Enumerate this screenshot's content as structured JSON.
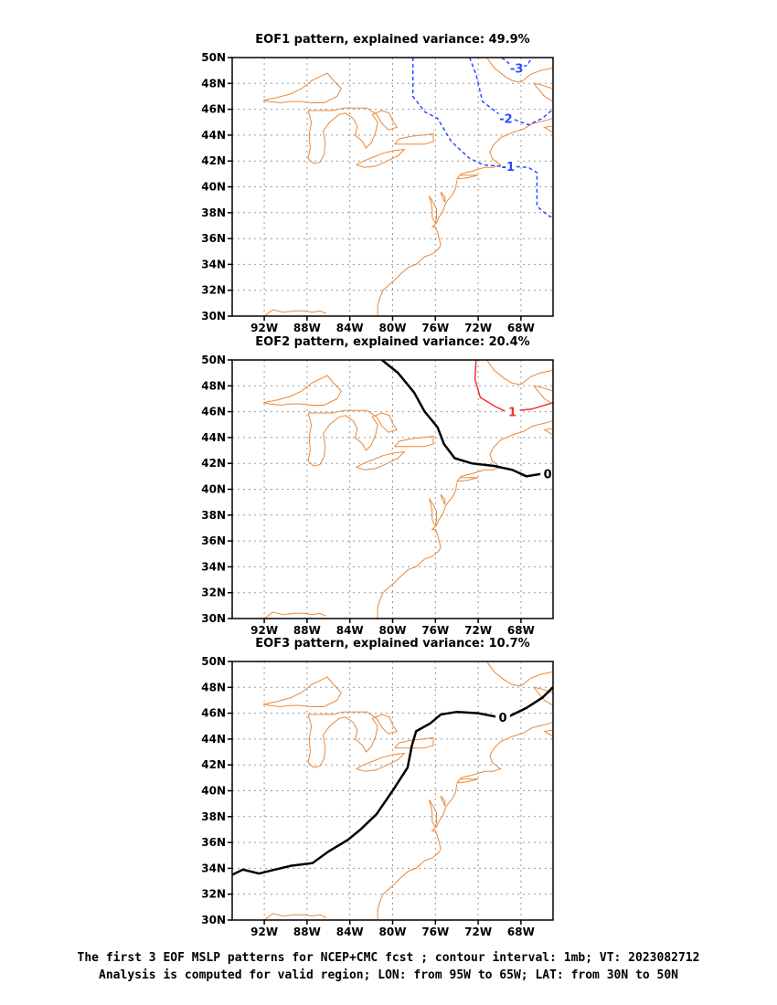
{
  "panels": [
    {
      "id": "eof1",
      "title": "EOF1 pattern, explained variance: 49.9%",
      "contours": [
        {
          "value": -1,
          "label": "-1",
          "style": "dashed",
          "color": "#2a4bff",
          "points": [
            [
              -78.1,
              50
            ],
            [
              -78.1,
              47
            ],
            [
              -77,
              45.8
            ],
            [
              -75.8,
              45.3
            ],
            [
              -74.5,
              43.5
            ],
            [
              -72.8,
              42.2
            ],
            [
              -71.5,
              41.7
            ],
            [
              -70,
              41.6
            ],
            [
              -69,
              41.6
            ],
            [
              -67.3,
              41.5
            ],
            [
              -66.5,
              41.1
            ],
            [
              -66.5,
              38.5
            ],
            [
              -65.5,
              37.8
            ],
            [
              -65,
              37.6
            ]
          ],
          "label_at": [
            -69.2,
            41.6
          ]
        },
        {
          "value": -2,
          "label": "-2",
          "style": "dashed",
          "color": "#2a4bff",
          "points": [
            [
              -72.8,
              50
            ],
            [
              -72.2,
              48.7
            ],
            [
              -71.6,
              46.6
            ],
            [
              -70,
              45.6
            ],
            [
              -68.6,
              45.2
            ],
            [
              -67.3,
              44.8
            ],
            [
              -66,
              45.3
            ],
            [
              -65,
              46
            ]
          ],
          "label_at": [
            -69.4,
            45.3
          ]
        },
        {
          "value": -3,
          "label": "-3",
          "style": "dashed",
          "color": "#2a4bff",
          "points": [
            [
              -69.8,
              50
            ],
            [
              -68.6,
              49.2
            ],
            [
              -67.4,
              49.4
            ],
            [
              -67,
              50
            ]
          ],
          "label_at": [
            -68.4,
            49.2
          ]
        }
      ]
    },
    {
      "id": "eof2",
      "title": "EOF2 pattern, explained variance: 20.4%",
      "contours": [
        {
          "value": 0,
          "label": "0",
          "style": "solid",
          "color": "#000000",
          "points": [
            [
              -81,
              50
            ],
            [
              -79.5,
              49
            ],
            [
              -78,
              47.5
            ],
            [
              -77,
              46
            ],
            [
              -75.8,
              44.8
            ],
            [
              -75.2,
              43.5
            ],
            [
              -74.2,
              42.4
            ],
            [
              -72.6,
              42
            ],
            [
              -70.5,
              41.8
            ],
            [
              -68.8,
              41.5
            ],
            [
              -67.5,
              41
            ],
            [
              -66,
              41.2
            ],
            [
              -65.4,
              41.2
            ]
          ],
          "label_at": [
            -65.5,
            41.2
          ]
        },
        {
          "value": 1,
          "label": "1",
          "style": "solid",
          "color": "#ee3333",
          "points": [
            [
              -72.2,
              50
            ],
            [
              -72.3,
              48.5
            ],
            [
              -71.8,
              47.1
            ],
            [
              -70.4,
              46.4
            ],
            [
              -69.4,
              46
            ],
            [
              -67,
              46.2
            ],
            [
              -65,
              46.7
            ]
          ],
          "label_at": [
            -68.8,
            46
          ]
        }
      ]
    },
    {
      "id": "eof3",
      "title": "EOF3 pattern, explained variance: 10.7%",
      "contours": [
        {
          "value": 0,
          "label": "0",
          "style": "solid",
          "color": "#000000",
          "points": [
            [
              -95,
              33.5
            ],
            [
              -94,
              33.9
            ],
            [
              -92.5,
              33.6
            ],
            [
              -91,
              33.9
            ],
            [
              -89.5,
              34.2
            ],
            [
              -87.5,
              34.4
            ],
            [
              -86,
              35.3
            ],
            [
              -84.2,
              36.2
            ],
            [
              -83,
              37
            ],
            [
              -81.5,
              38.2
            ],
            [
              -80,
              40
            ],
            [
              -78.6,
              41.8
            ],
            [
              -78.2,
              43.5
            ],
            [
              -77.8,
              44.6
            ],
            [
              -76.5,
              45.2
            ],
            [
              -75.5,
              45.9
            ],
            [
              -74,
              46.1
            ],
            [
              -72,
              46
            ],
            [
              -69.5,
              45.6
            ],
            [
              -67.5,
              46.4
            ],
            [
              -66,
              47.2
            ],
            [
              -65,
              48
            ]
          ],
          "label_at": [
            -69.7,
            45.7
          ]
        }
      ]
    }
  ],
  "axes": {
    "lon_range": [
      -95,
      -65
    ],
    "lat_range": [
      30,
      50
    ],
    "x_ticks": [
      -92,
      -88,
      -84,
      -80,
      -76,
      -72,
      -68
    ],
    "x_tick_labels": [
      "92W",
      "88W",
      "84W",
      "80W",
      "76W",
      "72W",
      "68W"
    ],
    "y_ticks": [
      30,
      32,
      34,
      36,
      38,
      40,
      42,
      44,
      46,
      48,
      50
    ],
    "y_tick_labels": [
      "30N",
      "32N",
      "34N",
      "36N",
      "38N",
      "40N",
      "42N",
      "44N",
      "46N",
      "48N",
      "50N"
    ],
    "grid": true
  },
  "map_color": "#e8883a",
  "caption": {
    "line1": "The first 3 EOF MSLP patterns for NCEP+CMC fcst ; contour interval: 1mb; VT: 2023082712",
    "line2": "Analysis is computed for valid region; LON: from 95W to 65W; LAT: from 30N to 50N"
  }
}
